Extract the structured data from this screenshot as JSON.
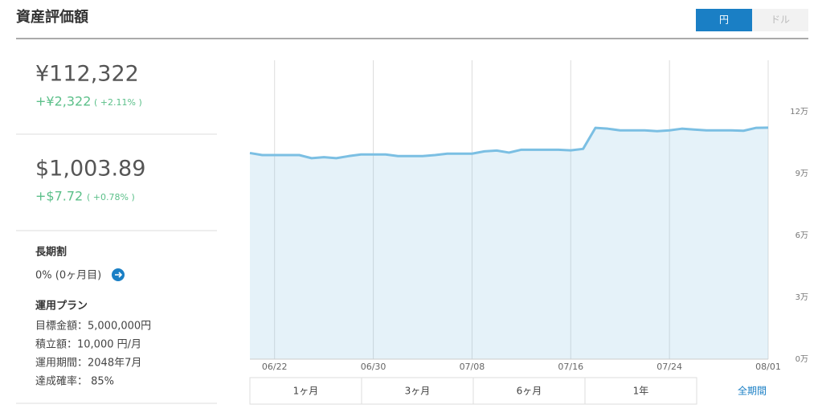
{
  "header": {
    "title": "資産評価額",
    "toggle": [
      "円",
      "ドル"
    ]
  },
  "summary": {
    "jpy": {
      "value": "¥112,322",
      "change": "+¥2,322",
      "change_pct": "( +2.11% )"
    },
    "usd": {
      "value": "$1,003.89",
      "change": "+$7.72",
      "change_pct": "( +0.78% )"
    }
  },
  "long_term": {
    "title": "長期割",
    "value": "0% (0ヶ月目)"
  },
  "plan": {
    "title": "運用プラン",
    "items": [
      "目標金額：5,000,000円",
      "積立額：10,000 円/月",
      "運用期間：2048年7月",
      "達成確率： 85%"
    ]
  },
  "chart_data": {
    "type": "area",
    "color": "#7bbfe3",
    "categories": [
      null,
      null,
      "06/22",
      null,
      null,
      null,
      null,
      null,
      null,
      null,
      "06/30",
      null,
      null,
      null,
      null,
      null,
      null,
      null,
      "07/08",
      null,
      null,
      null,
      null,
      null,
      null,
      null,
      "07/16",
      null,
      null,
      null,
      null,
      null,
      null,
      null,
      "07/24",
      null,
      null,
      null,
      null,
      null,
      null,
      null,
      "08/01"
    ],
    "values": [
      100000,
      99000,
      99000,
      99000,
      99000,
      97500,
      98000,
      97500,
      98500,
      99300,
      99300,
      99300,
      98500,
      98500,
      98500,
      99000,
      99700,
      99700,
      99700,
      100800,
      101200,
      100200,
      101600,
      101600,
      101600,
      101600,
      101300,
      102000,
      112200,
      111800,
      111000,
      111000,
      111000,
      110600,
      111000,
      111800,
      111400,
      111000,
      111000,
      111000,
      110800,
      112200,
      112322
    ],
    "ylim": [
      0,
      145000
    ],
    "yticks": [
      {
        "value": 0,
        "label": "0万"
      },
      {
        "value": 30000,
        "label": "3万"
      },
      {
        "value": 60000,
        "label": "6万"
      },
      {
        "value": 90000,
        "label": "9万"
      },
      {
        "value": 120000,
        "label": "12万"
      }
    ],
    "grid": true
  },
  "periods": [
    "1ヶ月",
    "3ヶ月",
    "6ヶ月",
    "1年",
    "全期間"
  ]
}
